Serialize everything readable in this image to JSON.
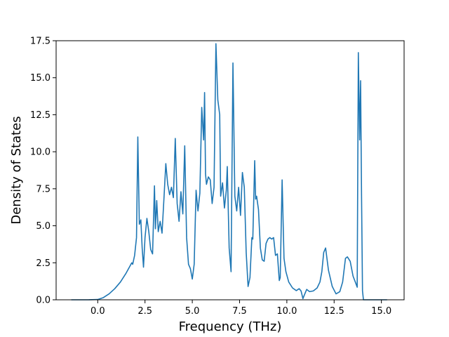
{
  "chart_data": {
    "type": "line",
    "title": "",
    "xlabel": "Frequency (THz)",
    "ylabel": "Density of States",
    "xlim": [
      -2.2,
      16.2
    ],
    "ylim": [
      0.0,
      17.5
    ],
    "xticks": [
      "0.0",
      "2.5",
      "5.0",
      "7.5",
      "10.0",
      "12.5",
      "15.0"
    ],
    "yticks": [
      "0.0",
      "2.5",
      "5.0",
      "7.5",
      "10.0",
      "12.5",
      "15.0",
      "17.5"
    ],
    "grid": false,
    "legend": "none",
    "line_color": "#1f77b4",
    "series": [
      {
        "x": [
          -1.4,
          -0.5,
          0.0,
          0.3,
          0.6,
          0.9,
          1.2,
          1.5,
          1.8,
          1.85,
          1.95,
          2.05,
          2.12,
          2.2,
          2.28,
          2.35,
          2.42,
          2.5,
          2.6,
          2.7,
          2.8,
          2.9,
          3.0,
          3.05,
          3.12,
          3.2,
          3.3,
          3.4,
          3.5,
          3.6,
          3.7,
          3.8,
          3.9,
          4.0,
          4.1,
          4.2,
          4.3,
          4.4,
          4.5,
          4.6,
          4.7,
          4.8,
          4.9,
          5.0,
          5.1,
          5.2,
          5.3,
          5.4,
          5.5,
          5.6,
          5.65,
          5.7,
          5.75,
          5.85,
          5.95,
          6.05,
          6.15,
          6.25,
          6.35,
          6.45,
          6.5,
          6.6,
          6.7,
          6.8,
          6.85,
          6.95,
          7.05,
          7.15,
          7.25,
          7.35,
          7.45,
          7.55,
          7.65,
          7.75,
          7.85,
          7.95,
          8.05,
          8.15,
          8.2,
          8.3,
          8.35,
          8.4,
          8.5,
          8.6,
          8.7,
          8.8,
          8.9,
          9.0,
          9.1,
          9.2,
          9.3,
          9.4,
          9.5,
          9.6,
          9.65,
          9.75,
          9.85,
          9.95,
          10.1,
          10.3,
          10.5,
          10.65,
          10.75,
          10.85,
          10.95,
          11.05,
          11.2,
          11.4,
          11.6,
          11.75,
          11.85,
          11.95,
          12.05,
          12.2,
          12.4,
          12.6,
          12.8,
          12.95,
          13.1,
          13.2,
          13.35,
          13.5,
          13.65,
          13.72,
          13.78,
          13.85,
          13.9,
          13.95,
          14.0,
          14.05,
          15.3
        ],
        "y": [
          0.0,
          0.0,
          0.02,
          0.15,
          0.4,
          0.75,
          1.2,
          1.8,
          2.5,
          2.4,
          3.0,
          4.2,
          11.0,
          5.1,
          5.4,
          3.5,
          2.2,
          4.2,
          5.5,
          4.6,
          3.4,
          3.1,
          7.7,
          4.8,
          6.7,
          4.6,
          5.3,
          4.5,
          6.8,
          9.2,
          7.8,
          7.1,
          7.6,
          6.9,
          10.9,
          6.5,
          5.3,
          7.3,
          5.8,
          10.4,
          4.2,
          2.4,
          2.1,
          1.4,
          2.4,
          7.4,
          6.0,
          7.2,
          13.0,
          10.8,
          14.0,
          8.5,
          7.8,
          8.3,
          8.1,
          6.5,
          7.6,
          17.3,
          13.5,
          12.5,
          7.0,
          7.9,
          6.2,
          7.4,
          9.0,
          3.5,
          1.9,
          16.0,
          7.0,
          6.0,
          7.6,
          5.7,
          8.6,
          7.6,
          3.2,
          0.9,
          1.5,
          4.2,
          4.1,
          9.4,
          6.8,
          7.0,
          6.1,
          3.5,
          2.7,
          2.6,
          3.8,
          4.1,
          4.2,
          4.1,
          4.2,
          3.0,
          3.1,
          1.3,
          1.5,
          8.1,
          2.8,
          1.9,
          1.2,
          0.8,
          0.62,
          0.75,
          0.6,
          0.08,
          0.4,
          0.7,
          0.55,
          0.6,
          0.8,
          1.2,
          1.9,
          3.2,
          3.5,
          2.0,
          0.9,
          0.4,
          0.55,
          1.2,
          2.8,
          2.9,
          2.6,
          1.6,
          1.1,
          0.85,
          16.7,
          10.8,
          14.8,
          7.0,
          0.6,
          0.0,
          0.0
        ]
      }
    ]
  }
}
